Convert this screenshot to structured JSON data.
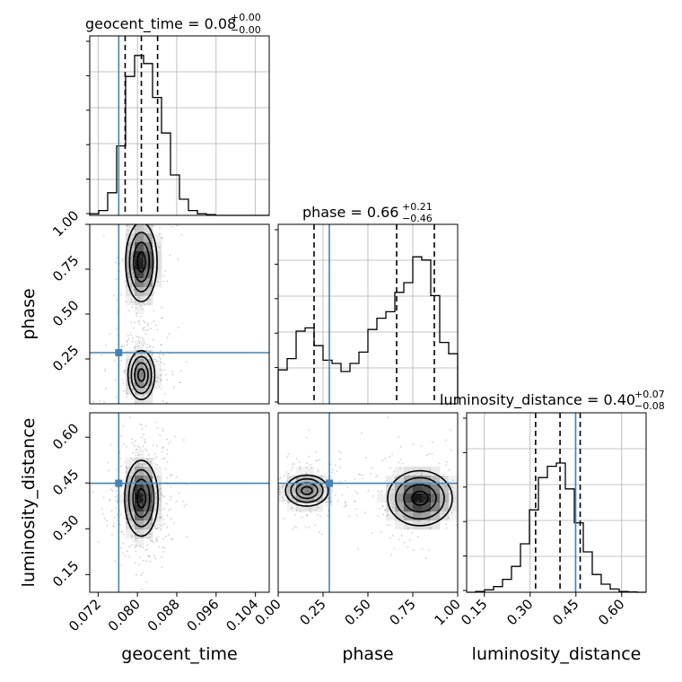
{
  "chart_data": {
    "type": "corner",
    "colors": {
      "truth": "#4682b4",
      "line": "#000000",
      "grid": "#b0b0b0"
    },
    "parameters": [
      {
        "key": "geocent_time",
        "label": "geocent_time",
        "title": "geocent_time = 0.08",
        "title_sup": "+0.00",
        "title_sub": "−0.00",
        "range": [
          0.0703,
          0.1068
        ],
        "ticks": [
          0.072,
          0.08,
          0.088,
          0.096,
          0.104
        ],
        "tick_labels": [
          "0.072",
          "0.080",
          "0.088",
          "0.096",
          "0.104"
        ],
        "quantiles": [
          0.0775,
          0.0808,
          0.0841
        ],
        "truth": 0.0762,
        "hist_counts": [
          0.01,
          0.03,
          0.14,
          0.43,
          0.86,
          0.99,
          0.94,
          0.73,
          0.51,
          0.25,
          0.1,
          0.03,
          0.01,
          0.005,
          0,
          0,
          0,
          0,
          0,
          0
        ]
      },
      {
        "key": "phase",
        "label": "phase",
        "title": "phase = 0.66",
        "title_sup": "+0.21",
        "title_sub": "−0.46",
        "range": [
          0.0,
          1.0
        ],
        "ticks": [
          0.0,
          0.25,
          0.5,
          0.75,
          1.0
        ],
        "tick_labels": [
          "0.00",
          "0.25",
          "0.50",
          "0.75",
          "1.00"
        ],
        "y_ticks": [
          0.25,
          0.5,
          0.75,
          1.0
        ],
        "y_tick_labels": [
          "0.25",
          "0.50",
          "0.75",
          "1.00"
        ],
        "quantiles": [
          0.2,
          0.66,
          0.87
        ],
        "truth": 0.285,
        "hist_counts": [
          0.21,
          0.28,
          0.45,
          0.47,
          0.36,
          0.27,
          0.25,
          0.2,
          0.25,
          0.32,
          0.46,
          0.53,
          0.57,
          0.69,
          0.75,
          0.91,
          0.89,
          0.67,
          0.38,
          0.31
        ]
      },
      {
        "key": "luminosity_distance",
        "label": "luminosity_distance",
        "title": "luminosity_distance = 0.40",
        "title_sup": "+0.07",
        "title_sub": "−0.08",
        "range": [
          0.092,
          0.68
        ],
        "ticks": [
          0.15,
          0.3,
          0.45,
          0.6
        ],
        "tick_labels": [
          "0.15",
          "0.30",
          "0.45",
          "0.60"
        ],
        "quantiles": [
          0.318,
          0.398,
          0.464
        ],
        "truth": 0.449,
        "hist_counts": [
          0.0,
          0.005,
          0.015,
          0.035,
          0.08,
          0.16,
          0.3,
          0.51,
          0.71,
          0.78,
          0.8,
          0.64,
          0.43,
          0.25,
          0.11,
          0.05,
          0.02,
          0.005,
          0.002,
          0.0
        ]
      }
    ],
    "joint": [
      {
        "x": "geocent_time",
        "y": "phase",
        "modes": [
          {
            "cx": 0.0808,
            "cy": 0.79,
            "sx": 0.0016,
            "sy": 0.11,
            "w": 1.0
          },
          {
            "cx": 0.0808,
            "cy": 0.16,
            "sx": 0.0016,
            "sy": 0.08,
            "w": 0.55
          }
        ]
      },
      {
        "x": "geocent_time",
        "y": "luminosity_distance",
        "modes": [
          {
            "cx": 0.0808,
            "cy": 0.4,
            "sx": 0.0017,
            "sy": 0.062,
            "w": 1.0
          }
        ]
      },
      {
        "x": "phase",
        "y": "luminosity_distance",
        "modes": [
          {
            "cx": 0.79,
            "cy": 0.4,
            "sx": 0.09,
            "sy": 0.045,
            "w": 1.0
          },
          {
            "cx": 0.16,
            "cy": 0.425,
            "sx": 0.07,
            "sy": 0.03,
            "w": 0.55
          }
        ]
      }
    ]
  }
}
